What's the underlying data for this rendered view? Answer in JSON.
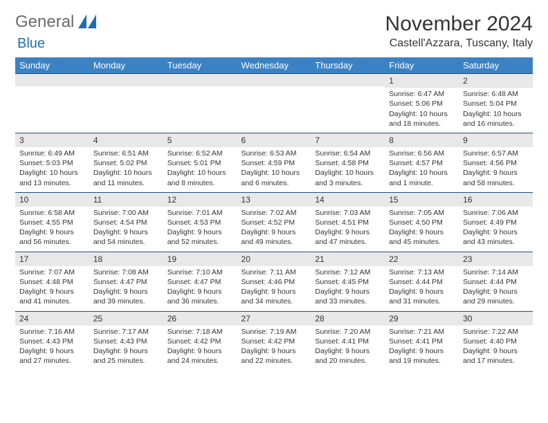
{
  "logo": {
    "text1": "General",
    "text2": "Blue"
  },
  "header": {
    "month_title": "November 2024",
    "location": "Castell'Azzara, Tuscany, Italy"
  },
  "colors": {
    "header_bg": "#3b82c4",
    "header_fg": "#ffffff",
    "daybar_bg": "#e8e8e8",
    "cell_border": "#1f4e79",
    "logo_gray": "#6a6a6a",
    "logo_blue": "#1f6fb2"
  },
  "weekdays": [
    "Sunday",
    "Monday",
    "Tuesday",
    "Wednesday",
    "Thursday",
    "Friday",
    "Saturday"
  ],
  "weeks": [
    [
      {
        "num": "",
        "sunrise": "",
        "sunset": "",
        "daylight": ""
      },
      {
        "num": "",
        "sunrise": "",
        "sunset": "",
        "daylight": ""
      },
      {
        "num": "",
        "sunrise": "",
        "sunset": "",
        "daylight": ""
      },
      {
        "num": "",
        "sunrise": "",
        "sunset": "",
        "daylight": ""
      },
      {
        "num": "",
        "sunrise": "",
        "sunset": "",
        "daylight": ""
      },
      {
        "num": "1",
        "sunrise": "Sunrise: 6:47 AM",
        "sunset": "Sunset: 5:06 PM",
        "daylight": "Daylight: 10 hours and 18 minutes."
      },
      {
        "num": "2",
        "sunrise": "Sunrise: 6:48 AM",
        "sunset": "Sunset: 5:04 PM",
        "daylight": "Daylight: 10 hours and 16 minutes."
      }
    ],
    [
      {
        "num": "3",
        "sunrise": "Sunrise: 6:49 AM",
        "sunset": "Sunset: 5:03 PM",
        "daylight": "Daylight: 10 hours and 13 minutes."
      },
      {
        "num": "4",
        "sunrise": "Sunrise: 6:51 AM",
        "sunset": "Sunset: 5:02 PM",
        "daylight": "Daylight: 10 hours and 11 minutes."
      },
      {
        "num": "5",
        "sunrise": "Sunrise: 6:52 AM",
        "sunset": "Sunset: 5:01 PM",
        "daylight": "Daylight: 10 hours and 8 minutes."
      },
      {
        "num": "6",
        "sunrise": "Sunrise: 6:53 AM",
        "sunset": "Sunset: 4:59 PM",
        "daylight": "Daylight: 10 hours and 6 minutes."
      },
      {
        "num": "7",
        "sunrise": "Sunrise: 6:54 AM",
        "sunset": "Sunset: 4:58 PM",
        "daylight": "Daylight: 10 hours and 3 minutes."
      },
      {
        "num": "8",
        "sunrise": "Sunrise: 6:56 AM",
        "sunset": "Sunset: 4:57 PM",
        "daylight": "Daylight: 10 hours and 1 minute."
      },
      {
        "num": "9",
        "sunrise": "Sunrise: 6:57 AM",
        "sunset": "Sunset: 4:56 PM",
        "daylight": "Daylight: 9 hours and 58 minutes."
      }
    ],
    [
      {
        "num": "10",
        "sunrise": "Sunrise: 6:58 AM",
        "sunset": "Sunset: 4:55 PM",
        "daylight": "Daylight: 9 hours and 56 minutes."
      },
      {
        "num": "11",
        "sunrise": "Sunrise: 7:00 AM",
        "sunset": "Sunset: 4:54 PM",
        "daylight": "Daylight: 9 hours and 54 minutes."
      },
      {
        "num": "12",
        "sunrise": "Sunrise: 7:01 AM",
        "sunset": "Sunset: 4:53 PM",
        "daylight": "Daylight: 9 hours and 52 minutes."
      },
      {
        "num": "13",
        "sunrise": "Sunrise: 7:02 AM",
        "sunset": "Sunset: 4:52 PM",
        "daylight": "Daylight: 9 hours and 49 minutes."
      },
      {
        "num": "14",
        "sunrise": "Sunrise: 7:03 AM",
        "sunset": "Sunset: 4:51 PM",
        "daylight": "Daylight: 9 hours and 47 minutes."
      },
      {
        "num": "15",
        "sunrise": "Sunrise: 7:05 AM",
        "sunset": "Sunset: 4:50 PM",
        "daylight": "Daylight: 9 hours and 45 minutes."
      },
      {
        "num": "16",
        "sunrise": "Sunrise: 7:06 AM",
        "sunset": "Sunset: 4:49 PM",
        "daylight": "Daylight: 9 hours and 43 minutes."
      }
    ],
    [
      {
        "num": "17",
        "sunrise": "Sunrise: 7:07 AM",
        "sunset": "Sunset: 4:48 PM",
        "daylight": "Daylight: 9 hours and 41 minutes."
      },
      {
        "num": "18",
        "sunrise": "Sunrise: 7:08 AM",
        "sunset": "Sunset: 4:47 PM",
        "daylight": "Daylight: 9 hours and 39 minutes."
      },
      {
        "num": "19",
        "sunrise": "Sunrise: 7:10 AM",
        "sunset": "Sunset: 4:47 PM",
        "daylight": "Daylight: 9 hours and 36 minutes."
      },
      {
        "num": "20",
        "sunrise": "Sunrise: 7:11 AM",
        "sunset": "Sunset: 4:46 PM",
        "daylight": "Daylight: 9 hours and 34 minutes."
      },
      {
        "num": "21",
        "sunrise": "Sunrise: 7:12 AM",
        "sunset": "Sunset: 4:45 PM",
        "daylight": "Daylight: 9 hours and 33 minutes."
      },
      {
        "num": "22",
        "sunrise": "Sunrise: 7:13 AM",
        "sunset": "Sunset: 4:44 PM",
        "daylight": "Daylight: 9 hours and 31 minutes."
      },
      {
        "num": "23",
        "sunrise": "Sunrise: 7:14 AM",
        "sunset": "Sunset: 4:44 PM",
        "daylight": "Daylight: 9 hours and 29 minutes."
      }
    ],
    [
      {
        "num": "24",
        "sunrise": "Sunrise: 7:16 AM",
        "sunset": "Sunset: 4:43 PM",
        "daylight": "Daylight: 9 hours and 27 minutes."
      },
      {
        "num": "25",
        "sunrise": "Sunrise: 7:17 AM",
        "sunset": "Sunset: 4:43 PM",
        "daylight": "Daylight: 9 hours and 25 minutes."
      },
      {
        "num": "26",
        "sunrise": "Sunrise: 7:18 AM",
        "sunset": "Sunset: 4:42 PM",
        "daylight": "Daylight: 9 hours and 24 minutes."
      },
      {
        "num": "27",
        "sunrise": "Sunrise: 7:19 AM",
        "sunset": "Sunset: 4:42 PM",
        "daylight": "Daylight: 9 hours and 22 minutes."
      },
      {
        "num": "28",
        "sunrise": "Sunrise: 7:20 AM",
        "sunset": "Sunset: 4:41 PM",
        "daylight": "Daylight: 9 hours and 20 minutes."
      },
      {
        "num": "29",
        "sunrise": "Sunrise: 7:21 AM",
        "sunset": "Sunset: 4:41 PM",
        "daylight": "Daylight: 9 hours and 19 minutes."
      },
      {
        "num": "30",
        "sunrise": "Sunrise: 7:22 AM",
        "sunset": "Sunset: 4:40 PM",
        "daylight": "Daylight: 9 hours and 17 minutes."
      }
    ]
  ]
}
